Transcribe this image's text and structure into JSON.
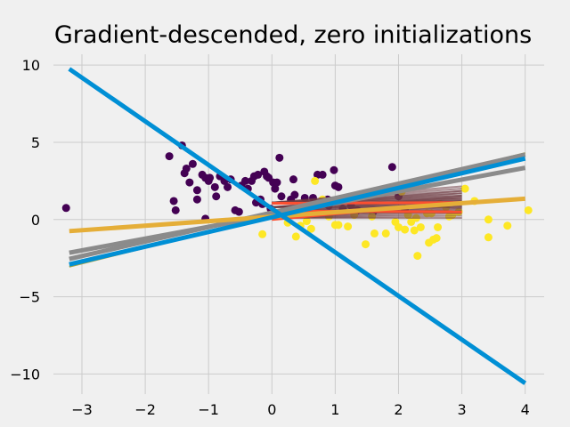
{
  "chart_data": {
    "type": "scatter",
    "title": "Gradient-descended, zero initializations",
    "xlabel": "",
    "ylabel": "",
    "xlim": [
      -3.45,
      4.3
    ],
    "ylim": [
      -11.3,
      10.7
    ],
    "xticks": [
      -3,
      -2,
      -1,
      0,
      1,
      2,
      3,
      4
    ],
    "yticks": [
      -10,
      -5,
      0,
      5,
      10
    ],
    "xtick_labels": [
      "−3",
      "−2",
      "−1",
      "0",
      "1",
      "2",
      "3",
      "4"
    ],
    "ytick_labels": [
      "−10",
      "−5",
      "0",
      "5",
      "10"
    ],
    "grid": true,
    "colors": {
      "background": "#f0f0f0",
      "grid": "#cbcbcb",
      "class0": "#440154",
      "class1": "#fde725",
      "blue": "#008fd5",
      "orange": "#e5ae38",
      "gray": "#8b8b8b",
      "red": "#fc4f30",
      "dark_red": "#6d3a41",
      "olive": "#a6a23c"
    },
    "scatter_series": [
      {
        "name": "",
        "color": "#440154",
        "points": [
          [
            -3.25,
            0.75
          ],
          [
            -1.62,
            4.1
          ],
          [
            -1.42,
            4.8
          ],
          [
            -1.55,
            1.2
          ],
          [
            -1.52,
            0.6
          ],
          [
            -1.38,
            3.0
          ],
          [
            -1.35,
            3.3
          ],
          [
            -1.3,
            2.4
          ],
          [
            -1.25,
            3.6
          ],
          [
            -1.18,
            1.9
          ],
          [
            -1.18,
            1.3
          ],
          [
            -1.1,
            2.9
          ],
          [
            -1.05,
            2.7
          ],
          [
            -1.05,
            0.05
          ],
          [
            -1.0,
            2.5
          ],
          [
            -0.98,
            2.7
          ],
          [
            -0.9,
            2.1
          ],
          [
            -0.88,
            1.5
          ],
          [
            -0.82,
            2.8
          ],
          [
            -0.75,
            2.5
          ],
          [
            -0.7,
            2.1
          ],
          [
            -0.65,
            2.6
          ],
          [
            -0.58,
            0.6
          ],
          [
            -0.52,
            0.5
          ],
          [
            -0.48,
            2.2
          ],
          [
            -0.42,
            2.5
          ],
          [
            -0.38,
            2.0
          ],
          [
            -0.32,
            2.5
          ],
          [
            -0.28,
            2.8
          ],
          [
            -0.25,
            1.1
          ],
          [
            -0.22,
            2.9
          ],
          [
            -0.18,
            1.3
          ],
          [
            -0.15,
            1.0
          ],
          [
            -0.12,
            3.1
          ],
          [
            -0.08,
            2.8
          ],
          [
            -0.05,
            2.7
          ],
          [
            -0.02,
            0.7
          ],
          [
            0.02,
            2.4
          ],
          [
            0.05,
            2.0
          ],
          [
            0.08,
            2.4
          ],
          [
            0.12,
            4.0
          ],
          [
            0.15,
            1.5
          ],
          [
            0.25,
            0.6
          ],
          [
            0.3,
            1.3
          ],
          [
            0.34,
            2.6
          ],
          [
            0.36,
            1.6
          ],
          [
            0.45,
            0.9
          ],
          [
            0.52,
            1.4
          ],
          [
            0.58,
            0.6
          ],
          [
            0.65,
            1.4
          ],
          [
            0.72,
            2.9
          ],
          [
            0.8,
            2.9
          ],
          [
            0.88,
            1.3
          ],
          [
            0.9,
            0.9
          ],
          [
            0.98,
            3.2
          ],
          [
            1.0,
            2.2
          ],
          [
            1.05,
            2.1
          ],
          [
            1.12,
            0.7
          ],
          [
            1.25,
            0.9
          ],
          [
            1.35,
            0.6
          ],
          [
            1.6,
            0.5
          ],
          [
            1.9,
            3.4
          ],
          [
            2.0,
            1.5
          ],
          [
            2.1,
            0.7
          ]
        ]
      },
      {
        "name": "",
        "color": "#fde725",
        "points": [
          [
            -0.15,
            -0.95
          ],
          [
            0.25,
            -0.2
          ],
          [
            0.3,
            0.35
          ],
          [
            0.38,
            -1.1
          ],
          [
            0.45,
            -0.4
          ],
          [
            0.55,
            -0.1
          ],
          [
            0.62,
            -0.6
          ],
          [
            0.68,
            2.5
          ],
          [
            0.8,
            1.3
          ],
          [
            0.9,
            0.2
          ],
          [
            1.0,
            -0.35
          ],
          [
            1.05,
            -0.35
          ],
          [
            1.2,
            -0.45
          ],
          [
            1.3,
            0.3
          ],
          [
            1.48,
            -1.6
          ],
          [
            1.58,
            0.2
          ],
          [
            1.62,
            -0.9
          ],
          [
            1.8,
            -0.9
          ],
          [
            1.95,
            -0.15
          ],
          [
            2.0,
            -0.5
          ],
          [
            2.05,
            1.8
          ],
          [
            2.1,
            -0.65
          ],
          [
            2.15,
            0.3
          ],
          [
            2.2,
            -0.15
          ],
          [
            2.25,
            -0.7
          ],
          [
            2.28,
            0.1
          ],
          [
            2.3,
            -2.35
          ],
          [
            2.35,
            -0.5
          ],
          [
            2.45,
            0.4
          ],
          [
            2.48,
            -1.5
          ],
          [
            2.52,
            0.4
          ],
          [
            2.55,
            -1.3
          ],
          [
            2.6,
            -1.2
          ],
          [
            2.62,
            -0.5
          ],
          [
            2.65,
            1.0
          ],
          [
            2.75,
            0.8
          ],
          [
            2.8,
            0.2
          ],
          [
            2.85,
            0.3
          ],
          [
            2.95,
            0.5
          ],
          [
            3.05,
            2.0
          ],
          [
            3.2,
            1.2
          ],
          [
            3.42,
            -1.15
          ],
          [
            3.42,
            0.0
          ],
          [
            3.72,
            -0.4
          ],
          [
            4.05,
            0.6
          ]
        ]
      }
    ],
    "fan_lines": {
      "color": "#6d3a41",
      "x": [
        0,
        3
      ],
      "intercepts": [
        0.1,
        0.45,
        0.8,
        1.1
      ],
      "slopes": [
        0.0,
        0.05,
        0.1,
        0.15,
        0.2,
        0.25,
        0.3,
        0.35
      ]
    },
    "red_lines": [
      {
        "x": [
          0,
          3
        ],
        "y": [
          1.05,
          1.1
        ]
      },
      {
        "x": [
          0,
          3
        ],
        "y": [
          0.0,
          1.1
        ]
      },
      {
        "x": [
          0,
          3
        ],
        "y": [
          0.55,
          0.5
        ]
      }
    ],
    "line_series": [
      {
        "color": "#8b8b8b",
        "width": 5,
        "x": [
          -3.2,
          4.0
        ],
        "y": [
          -2.15,
          3.35
        ]
      },
      {
        "color": "#a6a23c",
        "width": 2,
        "x": [
          -3.2,
          4.0
        ],
        "y": [
          -3.05,
          4.3
        ]
      },
      {
        "color": "#8b8b8b",
        "width": 5,
        "x": [
          -3.2,
          4.0
        ],
        "y": [
          -2.55,
          4.2
        ]
      },
      {
        "color": "#e5ae38",
        "width": 5,
        "x": [
          -3.2,
          4.0
        ],
        "y": [
          -0.75,
          1.35
        ]
      },
      {
        "color": "#008fd5",
        "width": 5,
        "x": [
          -3.2,
          4.0
        ],
        "y": [
          9.75,
          -10.6
        ]
      },
      {
        "color": "#008fd5",
        "width": 5,
        "x": [
          -3.2,
          4.0
        ],
        "y": [
          -2.9,
          3.95
        ]
      }
    ]
  }
}
